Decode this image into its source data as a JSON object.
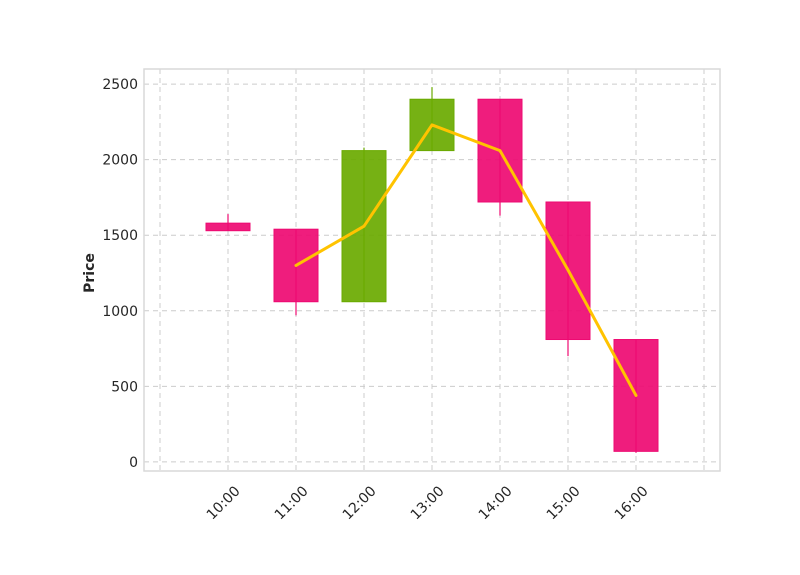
{
  "chart_data": {
    "type": "candlestick",
    "title": "",
    "xlabel": "",
    "ylabel": "Price",
    "ylim": [
      -60,
      2600
    ],
    "yticks": [
      0,
      500,
      1000,
      1500,
      2000,
      2500
    ],
    "grid": true,
    "categories": [
      "10:00",
      "11:00",
      "12:00",
      "13:00",
      "14:00",
      "15:00",
      "16:00"
    ],
    "candles": [
      {
        "time": "10:00",
        "open": 1580,
        "high": 1640,
        "low": 1530,
        "close": 1530
      },
      {
        "time": "11:00",
        "open": 1540,
        "high": 1540,
        "low": 970,
        "close": 1060
      },
      {
        "time": "12:00",
        "open": 1060,
        "high": 2080,
        "low": 1060,
        "close": 2060
      },
      {
        "time": "13:00",
        "open": 2060,
        "high": 2480,
        "low": 2060,
        "close": 2400
      },
      {
        "time": "14:00",
        "open": 2400,
        "high": 2400,
        "low": 1630,
        "close": 1720
      },
      {
        "time": "15:00",
        "open": 1720,
        "high": 1720,
        "low": 700,
        "close": 810
      },
      {
        "time": "16:00",
        "open": 810,
        "high": 810,
        "low": 60,
        "close": 70
      }
    ],
    "moving_average": {
      "x": [
        "11:00",
        "12:00",
        "13:00",
        "14:00",
        "15:00",
        "16:00"
      ],
      "values": [
        1300,
        1560,
        2230,
        2060,
        1270,
        440
      ]
    },
    "colors": {
      "up": "#6aaa00",
      "down": "#ee0a72",
      "moving_average": "#ffc300",
      "grid": "#cccccc",
      "frame": "#d9d9d9"
    }
  }
}
